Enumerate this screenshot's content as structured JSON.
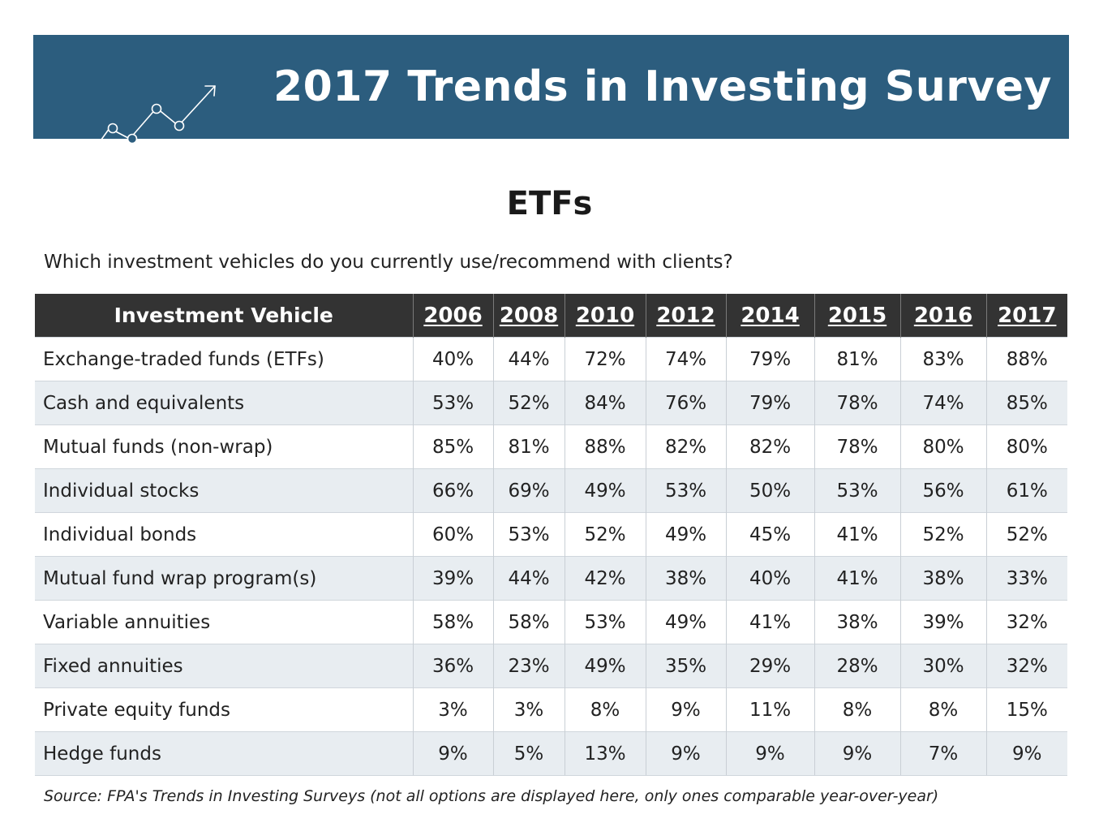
{
  "banner": {
    "title": "2017 Trends in Investing Survey",
    "icon": "trend-line-arrow-icon",
    "background_color": "#2c5d7e"
  },
  "section_title": "ETFs",
  "question": "Which investment vehicles do you currently use/recommend with clients?",
  "table": {
    "header_color": "#333333",
    "columns": [
      "Investment Vehicle",
      "2006",
      "2008",
      "2010",
      "2012",
      "2014",
      "2015",
      "2016",
      "2017"
    ],
    "rows": [
      {
        "vehicle": "Exchange-traded funds (ETFs)",
        "values": [
          "40%",
          "44%",
          "72%",
          "74%",
          "79%",
          "81%",
          "83%",
          "88%"
        ]
      },
      {
        "vehicle": "Cash and equivalents",
        "values": [
          "53%",
          "52%",
          "84%",
          "76%",
          "79%",
          "78%",
          "74%",
          "85%"
        ]
      },
      {
        "vehicle": "Mutual funds (non-wrap)",
        "values": [
          "85%",
          "81%",
          "88%",
          "82%",
          "82%",
          "78%",
          "80%",
          "80%"
        ]
      },
      {
        "vehicle": "Individual stocks",
        "values": [
          "66%",
          "69%",
          "49%",
          "53%",
          "50%",
          "53%",
          "56%",
          "61%"
        ]
      },
      {
        "vehicle": "Individual bonds",
        "values": [
          "60%",
          "53%",
          "52%",
          "49%",
          "45%",
          "41%",
          "52%",
          "52%"
        ]
      },
      {
        "vehicle": "Mutual fund wrap program(s)",
        "values": [
          "39%",
          "44%",
          "42%",
          "38%",
          "40%",
          "41%",
          "38%",
          "33%"
        ]
      },
      {
        "vehicle": "Variable annuities",
        "values": [
          "58%",
          "58%",
          "53%",
          "49%",
          "41%",
          "38%",
          "39%",
          "32%"
        ]
      },
      {
        "vehicle": "Fixed annuities",
        "values": [
          "36%",
          "23%",
          "49%",
          "35%",
          "29%",
          "28%",
          "30%",
          "32%"
        ]
      },
      {
        "vehicle": "Private equity funds",
        "values": [
          "3%",
          "3%",
          "8%",
          "9%",
          "11%",
          "8%",
          "8%",
          "15%"
        ]
      },
      {
        "vehicle": "Hedge funds",
        "values": [
          "9%",
          "5%",
          "13%",
          "9%",
          "9%",
          "9%",
          "7%",
          "9%"
        ]
      }
    ]
  },
  "source": "Source: FPA's Trends in Investing Surveys (not all options are displayed here, only ones comparable year-over-year)"
}
